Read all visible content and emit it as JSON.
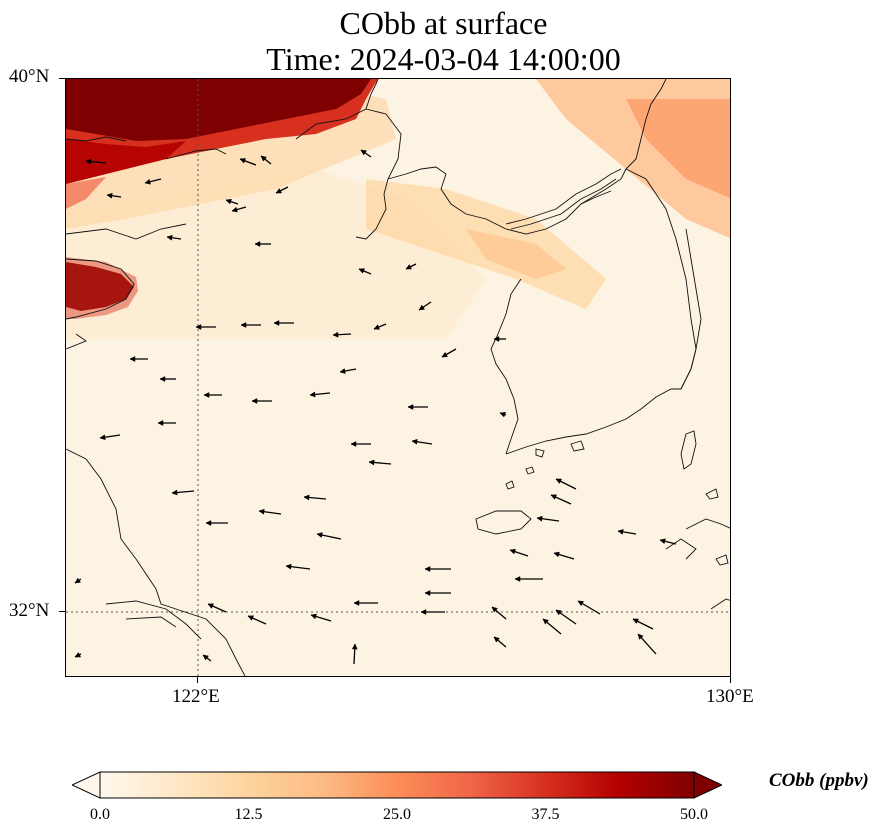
{
  "title": {
    "line1": "CObb at surface",
    "line2": "Time: 2024-03-04 14:00:00"
  },
  "map": {
    "lat_labels": [
      "40°N",
      "32°N"
    ],
    "lon_labels": [
      "122°E",
      "130°E"
    ],
    "extent": {
      "lon_min": 120,
      "lon_max": 130,
      "lat_min": 31,
      "lat_max": 40
    },
    "gridlines": {
      "lons": [
        122
      ],
      "lats": [
        32
      ],
      "style": "dotted"
    },
    "field_variable": "CObb",
    "plumes": [
      {
        "region": "northwest corner, Bohai / Liaodong",
        "value_ppbv": 50
      },
      {
        "region": "Shandong peninsula tip",
        "value_ppbv": 50
      },
      {
        "region": "northeast, North Korea interior",
        "value_ppbv": 22
      },
      {
        "region": "Korea Bay band",
        "value_ppbv": 12
      }
    ],
    "wind_vectors": "predominantly westward at sea, northwestward in southeast",
    "coastlines": true
  },
  "colorbar": {
    "title": "CObb (ppbv)",
    "ticks": [
      "0.0",
      "12.5",
      "25.0",
      "37.5",
      "50.0"
    ],
    "min": 0,
    "max": 50,
    "extend": "both",
    "colormap": "OrRd",
    "colors": [
      "#fff7ec",
      "#fee8c8",
      "#fdd49e",
      "#fdbb84",
      "#fc8d59",
      "#ef6548",
      "#d7301f",
      "#b30000",
      "#7f0000"
    ]
  }
}
